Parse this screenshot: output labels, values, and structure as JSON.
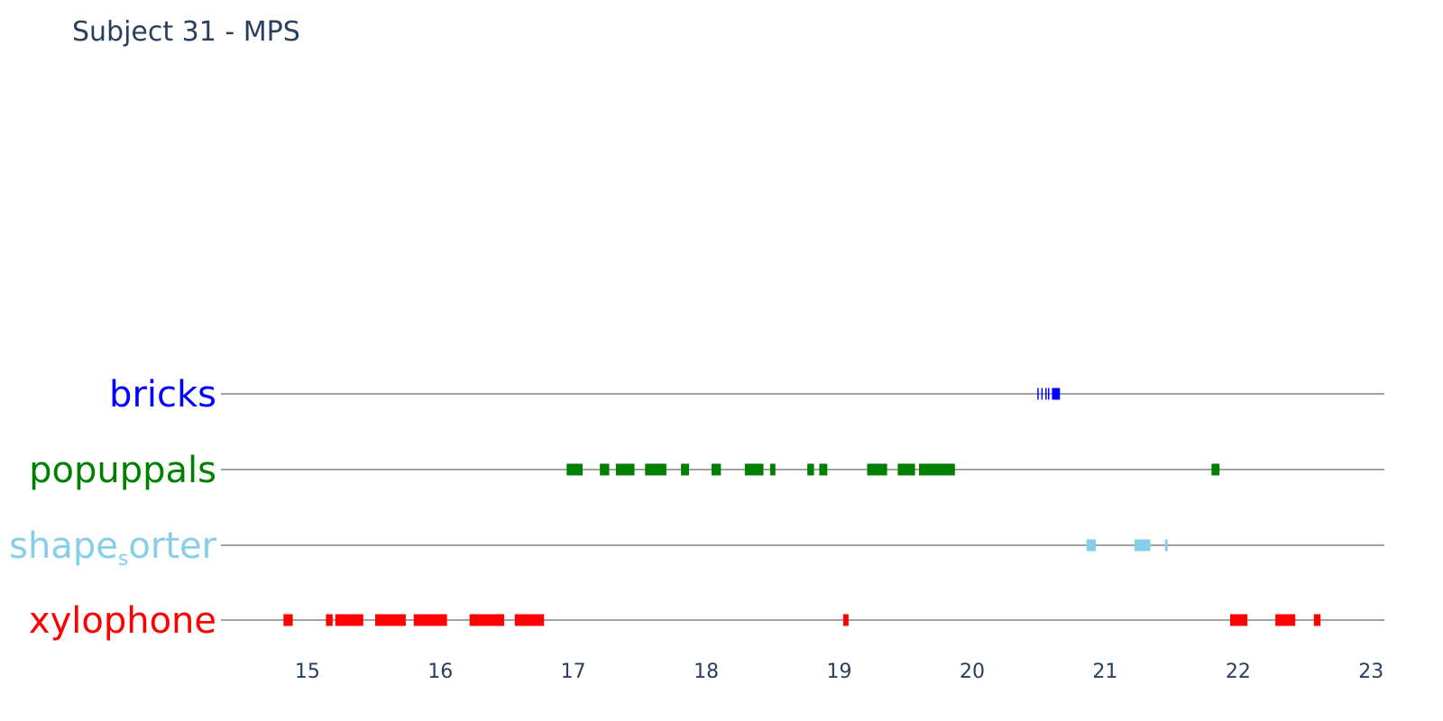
{
  "chart_data": {
    "type": "timeline",
    "title": "Subject 31 - MPS",
    "xlim": [
      14.35,
      23.1
    ],
    "x_ticks": [
      15,
      16,
      17,
      18,
      19,
      20,
      21,
      22,
      23
    ],
    "rows": [
      {
        "label": "bricks",
        "label_parts": [
          "bricks",
          "",
          ""
        ],
        "color": "#0000ff",
        "events": [
          {
            "start": 20.49,
            "end": 20.5
          },
          {
            "start": 20.52,
            "end": 20.53
          },
          {
            "start": 20.55,
            "end": 20.56
          },
          {
            "start": 20.57,
            "end": 20.58
          },
          {
            "start": 20.6,
            "end": 20.66
          }
        ]
      },
      {
        "label": "popuppals",
        "label_parts": [
          "popuppals",
          "",
          ""
        ],
        "color": "#008000",
        "events": [
          {
            "start": 16.95,
            "end": 17.07
          },
          {
            "start": 17.2,
            "end": 17.27
          },
          {
            "start": 17.32,
            "end": 17.46
          },
          {
            "start": 17.54,
            "end": 17.7
          },
          {
            "start": 17.81,
            "end": 17.87
          },
          {
            "start": 18.04,
            "end": 18.11
          },
          {
            "start": 18.29,
            "end": 18.43
          },
          {
            "start": 18.48,
            "end": 18.52
          },
          {
            "start": 18.76,
            "end": 18.81
          },
          {
            "start": 18.85,
            "end": 18.91
          },
          {
            "start": 19.21,
            "end": 19.36
          },
          {
            "start": 19.44,
            "end": 19.57
          },
          {
            "start": 19.6,
            "end": 19.87
          },
          {
            "start": 21.8,
            "end": 21.86
          }
        ]
      },
      {
        "label": "shape_sorter",
        "label_parts": [
          "shape",
          "s",
          "orter"
        ],
        "color": "#87ceeb",
        "events": [
          {
            "start": 20.86,
            "end": 20.93
          },
          {
            "start": 21.22,
            "end": 21.34
          },
          {
            "start": 21.45,
            "end": 21.47
          }
        ]
      },
      {
        "label": "xylophone",
        "label_parts": [
          "xylophone",
          "",
          ""
        ],
        "color": "#ff0000",
        "events": [
          {
            "start": 14.82,
            "end": 14.89
          },
          {
            "start": 15.14,
            "end": 15.19
          },
          {
            "start": 15.21,
            "end": 15.42
          },
          {
            "start": 15.51,
            "end": 15.74
          },
          {
            "start": 15.8,
            "end": 16.05
          },
          {
            "start": 16.22,
            "end": 16.48
          },
          {
            "start": 16.56,
            "end": 16.78
          },
          {
            "start": 19.03,
            "end": 19.07
          },
          {
            "start": 21.94,
            "end": 22.07
          },
          {
            "start": 22.28,
            "end": 22.43
          },
          {
            "start": 22.57,
            "end": 22.62
          }
        ]
      }
    ]
  }
}
